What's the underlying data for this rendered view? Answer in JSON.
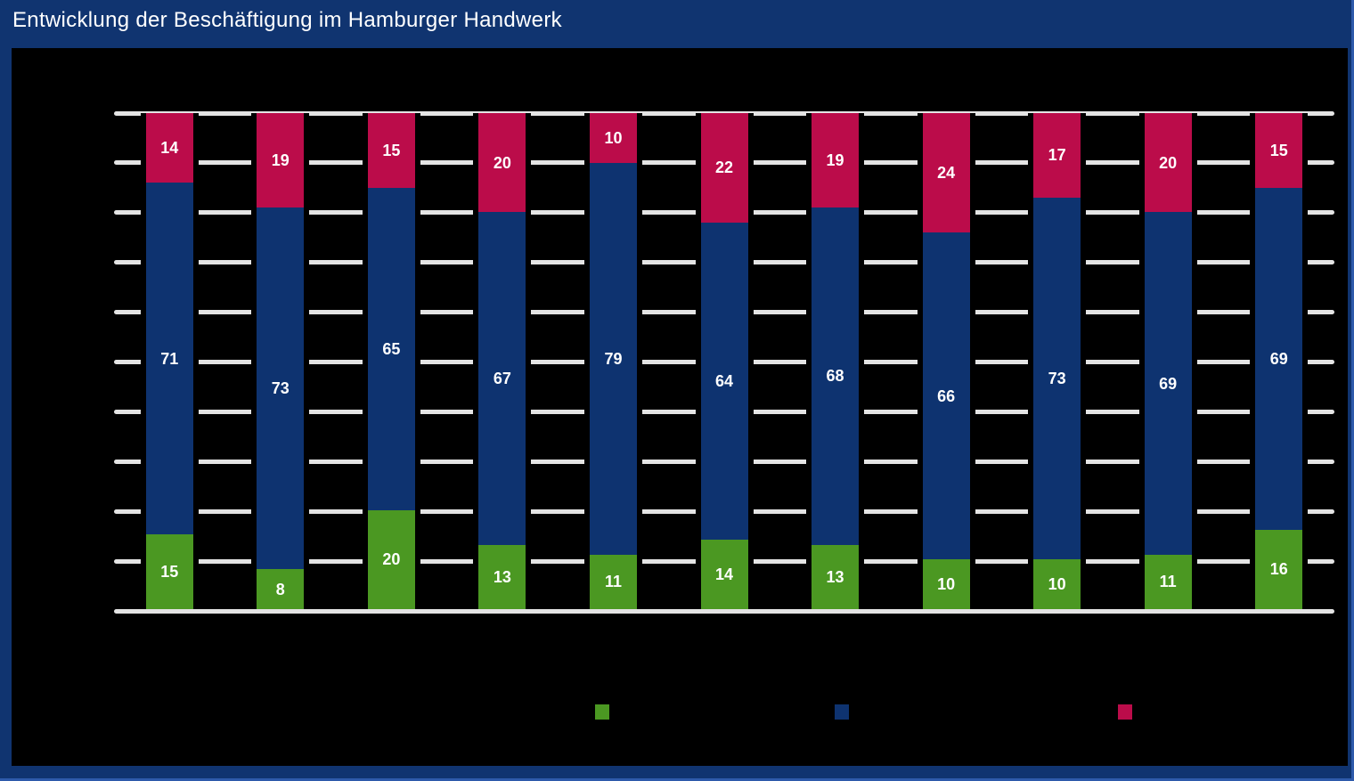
{
  "header": {
    "title": "Entwicklung der Beschäftigung im Hamburger Handwerk"
  },
  "colors": {
    "frame_navy": "#103470",
    "frame_edge_highlight": "#2e5aab",
    "panel_background": "#000000",
    "gridline": "#e4e4e4",
    "title_text": "#ffffff",
    "value_label_text": "#ffffff",
    "segment_green": "#4b9822",
    "segment_blue": "#0e3370",
    "segment_red": "#bb0c4a"
  },
  "chart_data": {
    "type": "bar",
    "variant": "stacked-100-percent",
    "orientation": "vertical",
    "title": "Entwicklung der Beschäftigung im Hamburger Handwerk",
    "bar_count": 11,
    "stack_total": 100,
    "categories_visible": false,
    "axis_tick_labels_visible": false,
    "ylim": [
      0,
      100
    ],
    "grid": {
      "visible": true,
      "step": 10,
      "color": "#e4e4e4"
    },
    "show_value_labels": true,
    "series": [
      {
        "id": "bottom-green",
        "color": "#4b9822",
        "legend_label_visible": false,
        "values": [
          15,
          8,
          20,
          13,
          11,
          14,
          13,
          10,
          10,
          11,
          16
        ]
      },
      {
        "id": "middle-blue",
        "color": "#0e3370",
        "legend_label_visible": false,
        "values": [
          71,
          73,
          65,
          67,
          79,
          64,
          68,
          66,
          73,
          69,
          69
        ]
      },
      {
        "id": "top-red",
        "color": "#bb0c4a",
        "legend_label_visible": false,
        "values": [
          14,
          19,
          15,
          20,
          10,
          22,
          19,
          24,
          17,
          20,
          15
        ]
      }
    ],
    "legend": {
      "position": "bottom",
      "labels_visible": false,
      "swatches": [
        "#4b9822",
        "#0e3370",
        "#bb0c4a"
      ]
    }
  }
}
